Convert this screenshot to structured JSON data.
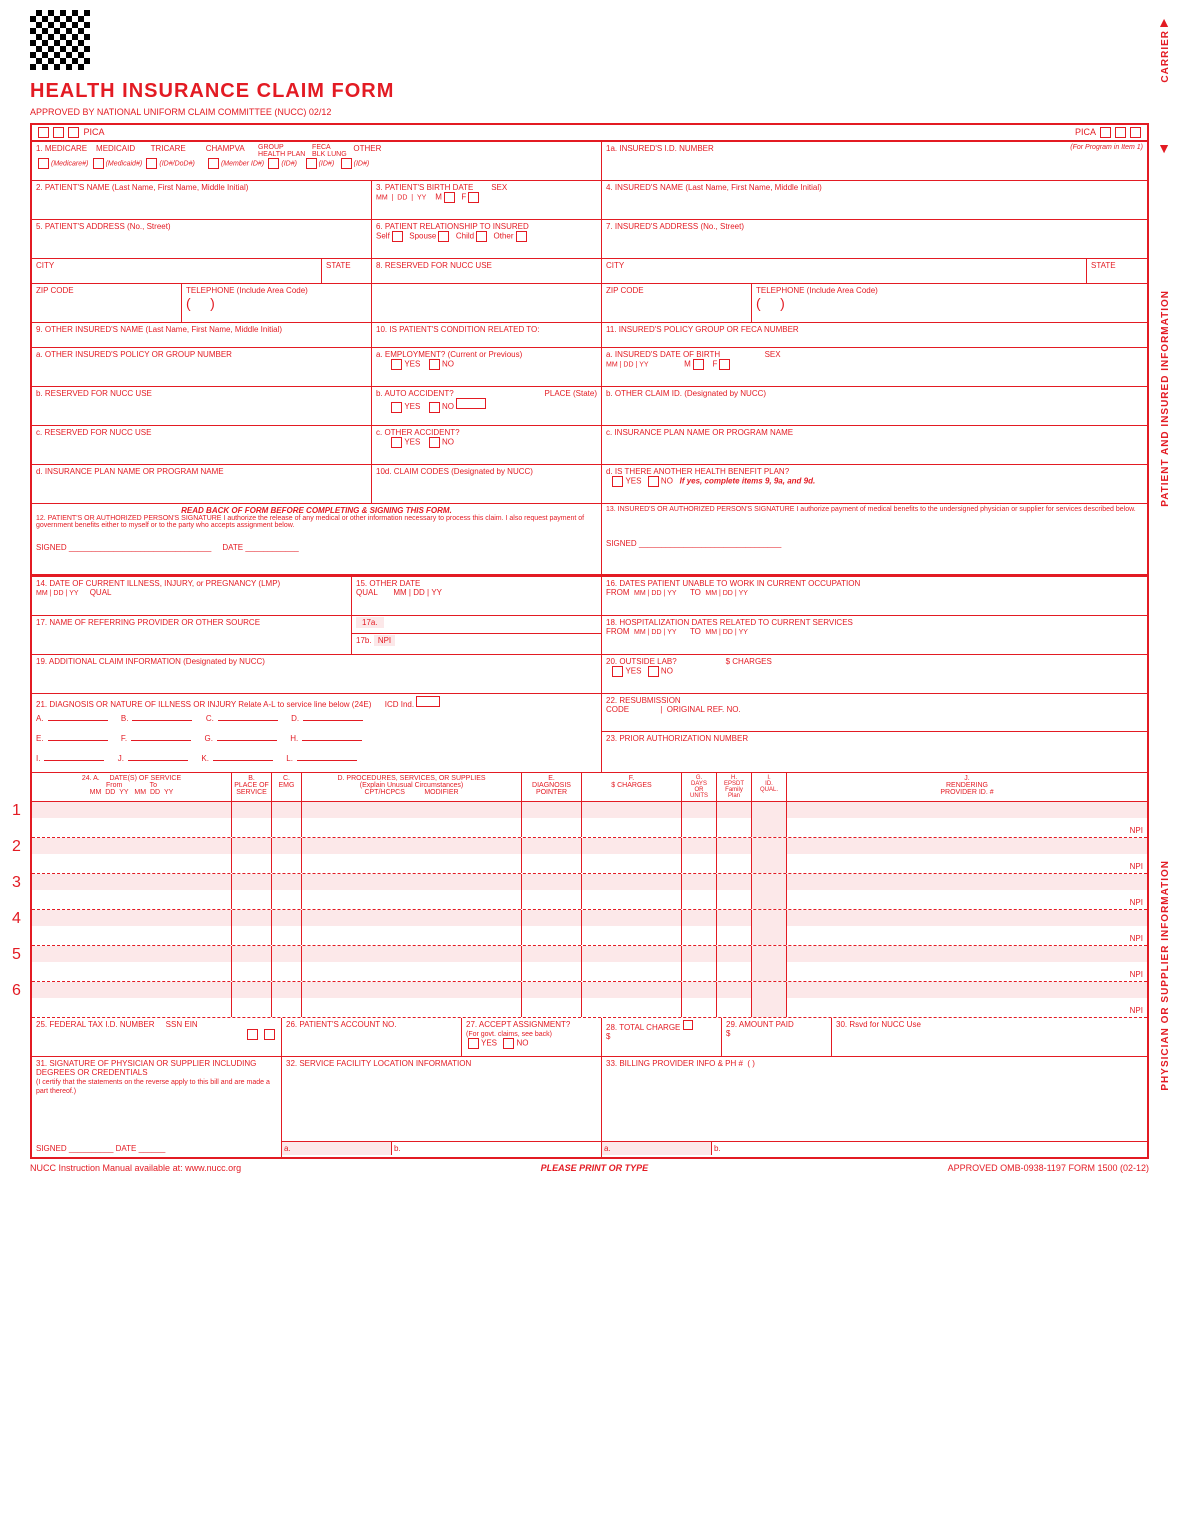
{
  "title": "HEALTH INSURANCE CLAIM FORM",
  "approved": "APPROVED BY NATIONAL UNIFORM CLAIM COMMITTEE (NUCC) 02/12",
  "pica": "PICA",
  "vlabels": {
    "carrier": "CARRIER",
    "patient": "PATIENT AND INSURED INFORMATION",
    "physician": "PHYSICIAN OR SUPPLIER INFORMATION"
  },
  "f1": {
    "label": "1.",
    "medicare": "MEDICARE",
    "medicare_sub": "(Medicare#)",
    "medicaid": "MEDICAID",
    "medicaid_sub": "(Medicaid#)",
    "tricare": "TRICARE",
    "tricare_sub": "(ID#/DoD#)",
    "champva": "CHAMPVA",
    "champva_sub": "(Member ID#)",
    "group": "GROUP\nHEALTH PLAN",
    "group_sub": "(ID#)",
    "feca": "FECA\nBLK LUNG",
    "feca_sub": "(ID#)",
    "other": "OTHER",
    "other_sub": "(ID#)"
  },
  "f1a": {
    "label": "1a. INSURED'S I.D. NUMBER",
    "sub": "(For Program in Item 1)"
  },
  "f2": "2. PATIENT'S NAME (Last Name, First Name, Middle Initial)",
  "f3": {
    "label": "3. PATIENT'S BIRTH DATE",
    "mm": "MM",
    "dd": "DD",
    "yy": "YY",
    "sex": "SEX",
    "m": "M",
    "f": "F"
  },
  "f4": "4. INSURED'S NAME (Last Name, First Name, Middle Initial)",
  "f5": "5. PATIENT'S ADDRESS (No., Street)",
  "f6": {
    "label": "6. PATIENT RELATIONSHIP TO INSURED",
    "self": "Self",
    "spouse": "Spouse",
    "child": "Child",
    "other": "Other"
  },
  "f7": "7. INSURED'S ADDRESS (No., Street)",
  "city": "CITY",
  "state": "STATE",
  "zip": "ZIP CODE",
  "tel": "TELEPHONE (Include Area Code)",
  "f8": "8. RESERVED FOR NUCC USE",
  "f9": "9. OTHER INSURED'S NAME (Last Name, First Name, Middle Initial)",
  "f9a": "a. OTHER INSURED'S POLICY OR GROUP NUMBER",
  "f9b": "b. RESERVED FOR NUCC USE",
  "f9c": "c. RESERVED FOR NUCC USE",
  "f9d": "d. INSURANCE PLAN NAME OR PROGRAM NAME",
  "f10": "10. IS PATIENT'S CONDITION RELATED TO:",
  "f10a": "a. EMPLOYMENT? (Current or Previous)",
  "f10b": "b. AUTO ACCIDENT?",
  "f10b_place": "PLACE (State)",
  "f10c": "c. OTHER ACCIDENT?",
  "f10d": "10d. CLAIM CODES (Designated by NUCC)",
  "yes": "YES",
  "no": "NO",
  "f11": "11. INSURED'S POLICY GROUP OR FECA NUMBER",
  "f11a": {
    "label": "a. INSURED'S DATE OF BIRTH",
    "sex": "SEX",
    "m": "M",
    "f": "F"
  },
  "f11b": "b. OTHER CLAIM ID. (Designated by NUCC)",
  "f11c": "c. INSURANCE PLAN NAME OR PROGRAM NAME",
  "f11d": {
    "label": "d. IS THERE ANOTHER HEALTH BENEFIT PLAN?",
    "note": "If yes, complete items 9, 9a, and 9d."
  },
  "f12": {
    "head": "READ BACK OF FORM BEFORE COMPLETING & SIGNING THIS FORM.",
    "text": "12. PATIENT'S OR AUTHORIZED PERSON'S SIGNATURE  I authorize the release of any medical or other information necessary to process this claim. I also request payment of government benefits either to myself or to the party who accepts assignment below.",
    "signed": "SIGNED",
    "date": "DATE"
  },
  "f13": {
    "text": "13. INSURED'S OR AUTHORIZED PERSON'S SIGNATURE I authorize payment of medical benefits to the undersigned physician or supplier for services described below.",
    "signed": "SIGNED"
  },
  "f14": {
    "label": "14. DATE OF CURRENT ILLNESS, INJURY, or PREGNANCY (LMP)",
    "qual": "QUAL"
  },
  "f15": {
    "label": "15. OTHER DATE",
    "qual": "QUAL",
    "mm": "MM",
    "dd": "DD",
    "yy": "YY"
  },
  "f16": {
    "label": "16. DATES PATIENT UNABLE TO WORK IN CURRENT OCCUPATION",
    "from": "FROM",
    "to": "TO"
  },
  "f17": "17. NAME OF REFERRING PROVIDER OR OTHER SOURCE",
  "f17a": "17a.",
  "f17b": "17b.",
  "npi": "NPI",
  "f18": {
    "label": "18. HOSPITALIZATION DATES RELATED TO CURRENT SERVICES",
    "from": "FROM",
    "to": "TO"
  },
  "f19": "19. ADDITIONAL CLAIM INFORMATION (Designated by NUCC)",
  "f20": {
    "label": "20. OUTSIDE LAB?",
    "charges": "$ CHARGES"
  },
  "f21": {
    "label": "21. DIAGNOSIS OR NATURE OF ILLNESS OR INJURY  Relate A-L to service line below (24E)",
    "icd": "ICD Ind.",
    "letters": [
      "A.",
      "B.",
      "C.",
      "D.",
      "E.",
      "F.",
      "G.",
      "H.",
      "I.",
      "J.",
      "K.",
      "L."
    ]
  },
  "f22": {
    "label": "22. RESUBMISSION\nCODE",
    "ref": "ORIGINAL REF. NO."
  },
  "f23": "23. PRIOR AUTHORIZATION NUMBER",
  "f24head": {
    "a": "24. A.     DATE(S) OF SERVICE",
    "from": "From",
    "to": "To",
    "mm": "MM",
    "dd": "DD",
    "yy": "YY",
    "b": "B.\nPLACE OF\nSERVICE",
    "c": "C.\nEMG",
    "d": "D. PROCEDURES, SERVICES, OR SUPPLIES\n(Explain Unusual Circumstances)\nCPT/HCPCS          MODIFIER",
    "e": "E.\nDIAGNOSIS\nPOINTER",
    "f": "F.\n$ CHARGES",
    "g": "G.\nDAYS\nOR\nUNITS",
    "h": "H.\nEPSDT\nFamily\nPlan",
    "i": "I.\nID.\nQUAL.",
    "j": "J.\nRENDERING\nPROVIDER ID. #"
  },
  "f25": {
    "label": "25. FEDERAL TAX I.D. NUMBER",
    "ssn": "SSN",
    "ein": "EIN"
  },
  "f26": "26. PATIENT'S ACCOUNT NO.",
  "f27": {
    "label": "27. ACCEPT ASSIGNMENT?",
    "sub": "(For govt. claims, see back)"
  },
  "f28": "28. TOTAL CHARGE",
  "f29": "29. AMOUNT PAID",
  "f30": "30. Rsvd for NUCC Use",
  "f31": {
    "label": "31. SIGNATURE OF PHYSICIAN OR SUPPLIER INCLUDING DEGREES OR CREDENTIALS",
    "sub": "(I certify that the statements on the reverse apply to this bill and are made a part thereof.)",
    "signed": "SIGNED",
    "date": "DATE"
  },
  "f32": "32. SERVICE FACILITY LOCATION INFORMATION",
  "f33": {
    "label": "33. BILLING PROVIDER INFO & PH #",
    "paren": "(          )"
  },
  "ab": {
    "a": "a.",
    "b": "b."
  },
  "dollar": "$",
  "footer": {
    "left": "NUCC Instruction Manual available at: www.nucc.org",
    "center": "PLEASE PRINT OR TYPE",
    "right": "APPROVED OMB-0938-1197 FORM 1500 (02-12)"
  },
  "svc_rows": [
    1,
    2,
    3,
    4,
    5,
    6
  ],
  "colors": {
    "red": "#e31b23",
    "pink": "#fce8e9",
    "white": "#ffffff"
  }
}
